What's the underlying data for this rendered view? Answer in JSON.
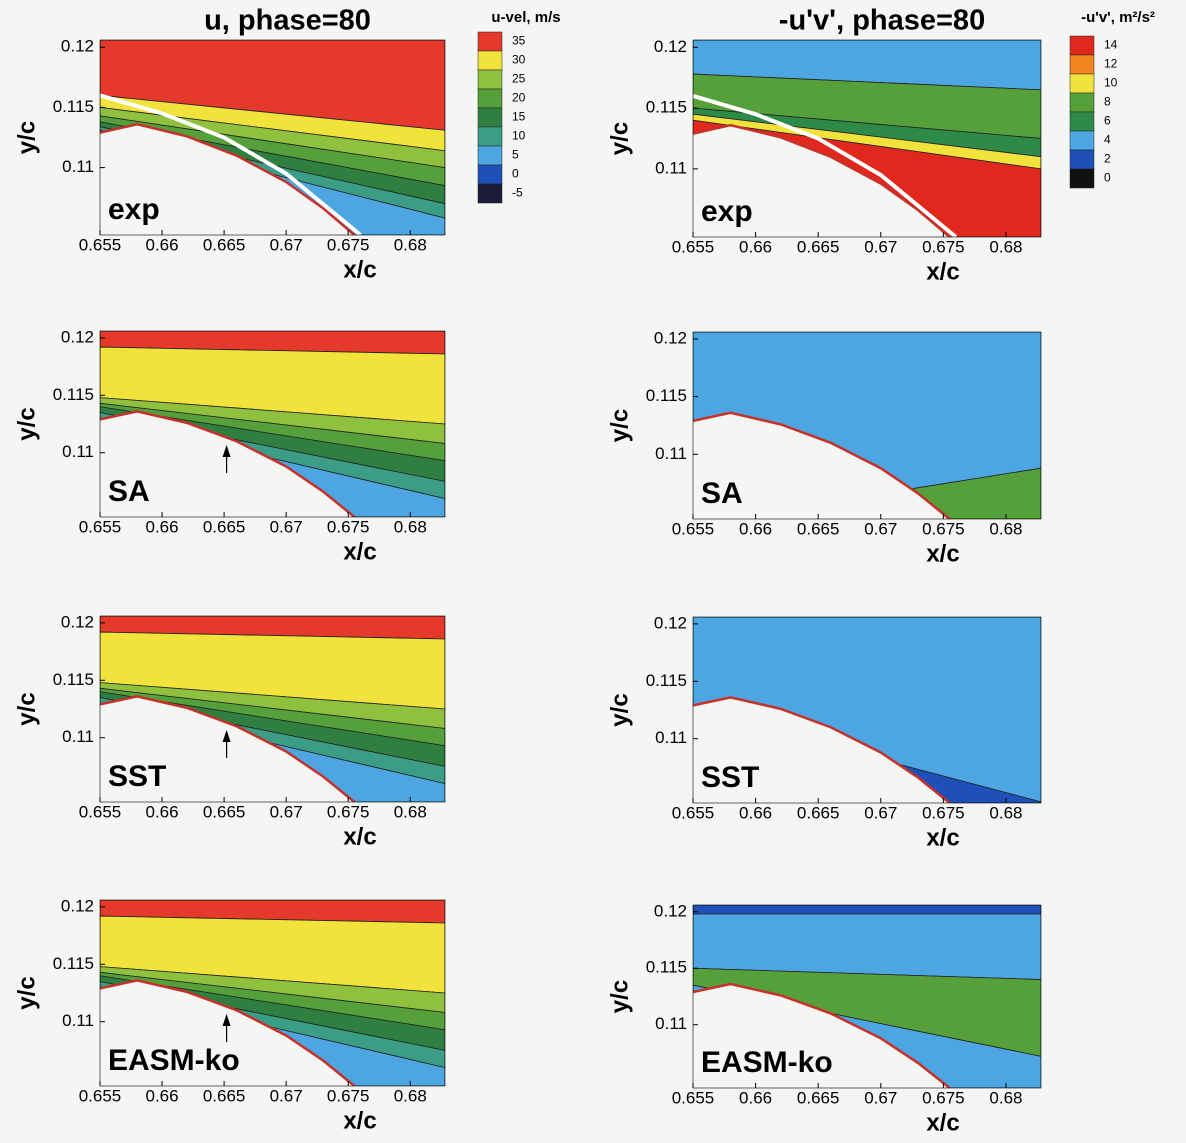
{
  "chart_data": [
    {
      "type": "contour",
      "title": "u, phase=80",
      "label": "exp",
      "xlabel": "x/c",
      "ylabel": "y/c",
      "xlim": [
        0.655,
        0.6828
      ],
      "ylim": [
        0.1044,
        0.1206
      ],
      "xticks": [
        0.655,
        0.66,
        0.665,
        0.67,
        0.675,
        0.68
      ],
      "yticks": [
        0.11,
        0.115,
        0.12
      ],
      "colorbar": {
        "title": "u-vel, m/s",
        "levels": [
          35,
          30,
          25,
          20,
          15,
          10,
          5,
          0,
          -5
        ],
        "colors": [
          "#e4392b",
          "#f1e33c",
          "#8fc03e",
          "#55a03a",
          "#2f8040",
          "#3b9d86",
          "#4da6e2",
          "#1f4fb8",
          "#1a1a3a"
        ]
      }
    },
    {
      "type": "contour",
      "title": "-u'v', phase=80",
      "label": "exp",
      "xlabel": "x/c",
      "ylabel": "y/c",
      "xlim": [
        0.655,
        0.6828
      ],
      "ylim": [
        0.1044,
        0.1206
      ],
      "xticks": [
        0.655,
        0.66,
        0.665,
        0.67,
        0.675,
        0.68
      ],
      "yticks": [
        0.11,
        0.115,
        0.12
      ],
      "colorbar": {
        "title": "-u'v', m²/s²",
        "levels": [
          14,
          12,
          10,
          8,
          6,
          4,
          2,
          0
        ],
        "colors": [
          "#e0281e",
          "#f2861f",
          "#f1e33c",
          "#55a03a",
          "#2e8a47",
          "#4da6e2",
          "#1f4fb8",
          "#111111"
        ]
      }
    },
    {
      "type": "contour",
      "label": "SA",
      "xlabel": "x/c",
      "ylabel": "y/c",
      "xlim": [
        0.655,
        0.6828
      ],
      "ylim": [
        0.1044,
        0.1206
      ],
      "xticks": [
        0.655,
        0.66,
        0.665,
        0.67,
        0.675,
        0.68
      ],
      "yticks": [
        0.11,
        0.115,
        0.12
      ]
    },
    {
      "type": "contour",
      "label": "SA",
      "xlabel": "x/c",
      "ylabel": "y/c",
      "xlim": [
        0.655,
        0.6828
      ],
      "ylim": [
        0.1044,
        0.1206
      ],
      "xticks": [
        0.655,
        0.66,
        0.665,
        0.67,
        0.675,
        0.68
      ],
      "yticks": [
        0.11,
        0.115,
        0.12
      ]
    },
    {
      "type": "contour",
      "label": "SST",
      "xlabel": "x/c",
      "ylabel": "y/c",
      "xlim": [
        0.655,
        0.6828
      ],
      "ylim": [
        0.1044,
        0.1206
      ],
      "xticks": [
        0.655,
        0.66,
        0.665,
        0.67,
        0.675,
        0.68
      ],
      "yticks": [
        0.11,
        0.115,
        0.12
      ]
    },
    {
      "type": "contour",
      "label": "SST",
      "xlabel": "x/c",
      "ylabel": "y/c",
      "xlim": [
        0.655,
        0.6828
      ],
      "ylim": [
        0.1044,
        0.1206
      ],
      "xticks": [
        0.655,
        0.66,
        0.665,
        0.67,
        0.675,
        0.68
      ],
      "yticks": [
        0.11,
        0.115,
        0.12
      ]
    },
    {
      "type": "contour",
      "label": "EASM-ko",
      "xlabel": "x/c",
      "ylabel": "y/c",
      "xlim": [
        0.655,
        0.6828
      ],
      "ylim": [
        0.1044,
        0.1206
      ],
      "xticks": [
        0.655,
        0.66,
        0.665,
        0.67,
        0.675,
        0.68
      ],
      "yticks": [
        0.11,
        0.115,
        0.12
      ]
    },
    {
      "type": "contour",
      "label": "EASM-ko",
      "xlabel": "x/c",
      "ylabel": "y/c",
      "xlim": [
        0.655,
        0.6828
      ],
      "ylim": [
        0.1044,
        0.1206
      ],
      "xticks": [
        0.655,
        0.66,
        0.665,
        0.67,
        0.675,
        0.68
      ],
      "yticks": [
        0.11,
        0.115,
        0.12
      ]
    }
  ]
}
